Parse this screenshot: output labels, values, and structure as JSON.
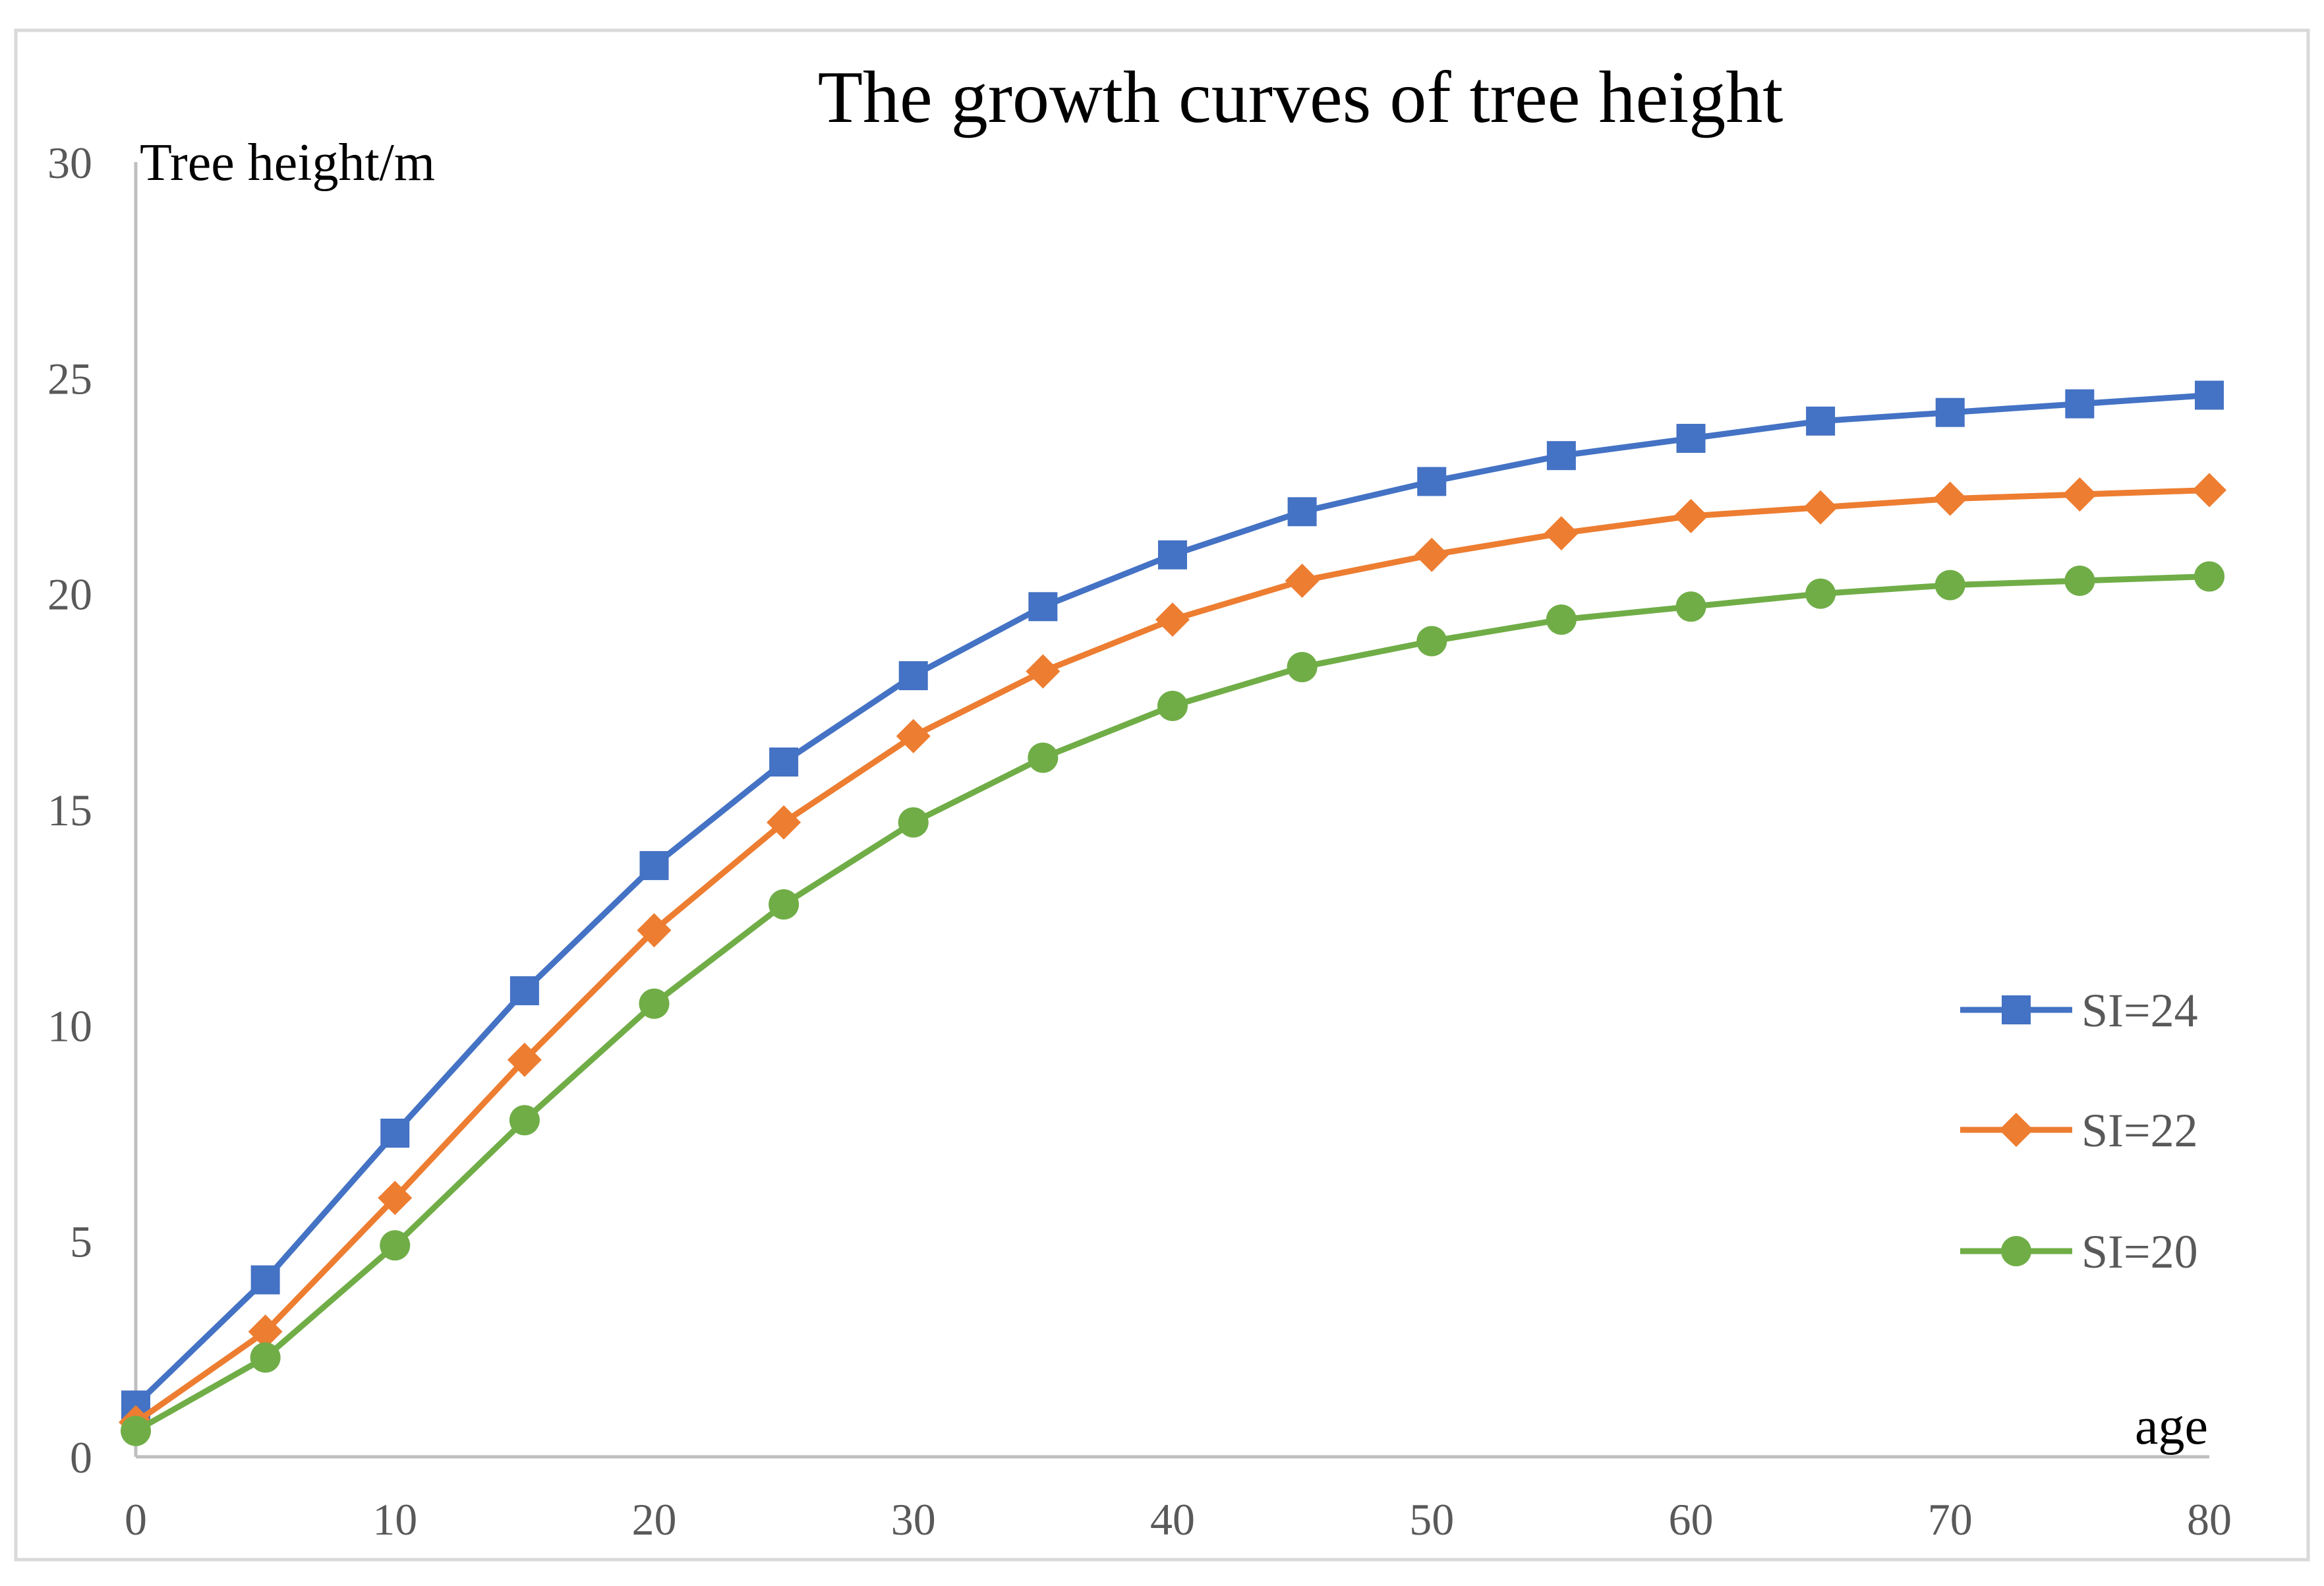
{
  "chart_data": {
    "type": "line",
    "title": "The growth curves of tree height",
    "xlabel": "age",
    "ylabel": "Tree height/m",
    "xlim": [
      0,
      80
    ],
    "ylim": [
      0,
      30
    ],
    "x_ticks": [
      0,
      10,
      20,
      30,
      40,
      50,
      60,
      70,
      80
    ],
    "y_ticks": [
      0,
      5,
      10,
      15,
      20,
      25,
      30
    ],
    "grid": false,
    "legend_position": "right",
    "x": [
      0,
      5,
      10,
      15,
      20,
      25,
      30,
      35,
      40,
      45,
      50,
      55,
      60,
      65,
      70,
      75,
      80
    ],
    "series": [
      {
        "name": "SI=24",
        "color": "#4472C4",
        "marker": "square",
        "values": [
          1.2,
          4.1,
          7.5,
          10.8,
          13.7,
          16.1,
          18.1,
          19.7,
          20.9,
          21.9,
          22.6,
          23.2,
          23.6,
          24.0,
          24.2,
          24.4,
          24.6
        ]
      },
      {
        "name": "SI=22",
        "color": "#ED7D31",
        "marker": "diamond",
        "values": [
          0.8,
          2.9,
          6.0,
          9.2,
          12.2,
          14.7,
          16.7,
          18.2,
          19.4,
          20.3,
          20.9,
          21.4,
          21.8,
          22.0,
          22.2,
          22.3,
          22.4
        ]
      },
      {
        "name": "SI=20",
        "color": "#70AD47",
        "marker": "circle",
        "values": [
          0.6,
          2.3,
          4.9,
          7.8,
          10.5,
          12.8,
          14.7,
          16.2,
          17.4,
          18.3,
          18.9,
          19.4,
          19.7,
          20.0,
          20.2,
          20.3,
          20.4
        ]
      }
    ]
  }
}
